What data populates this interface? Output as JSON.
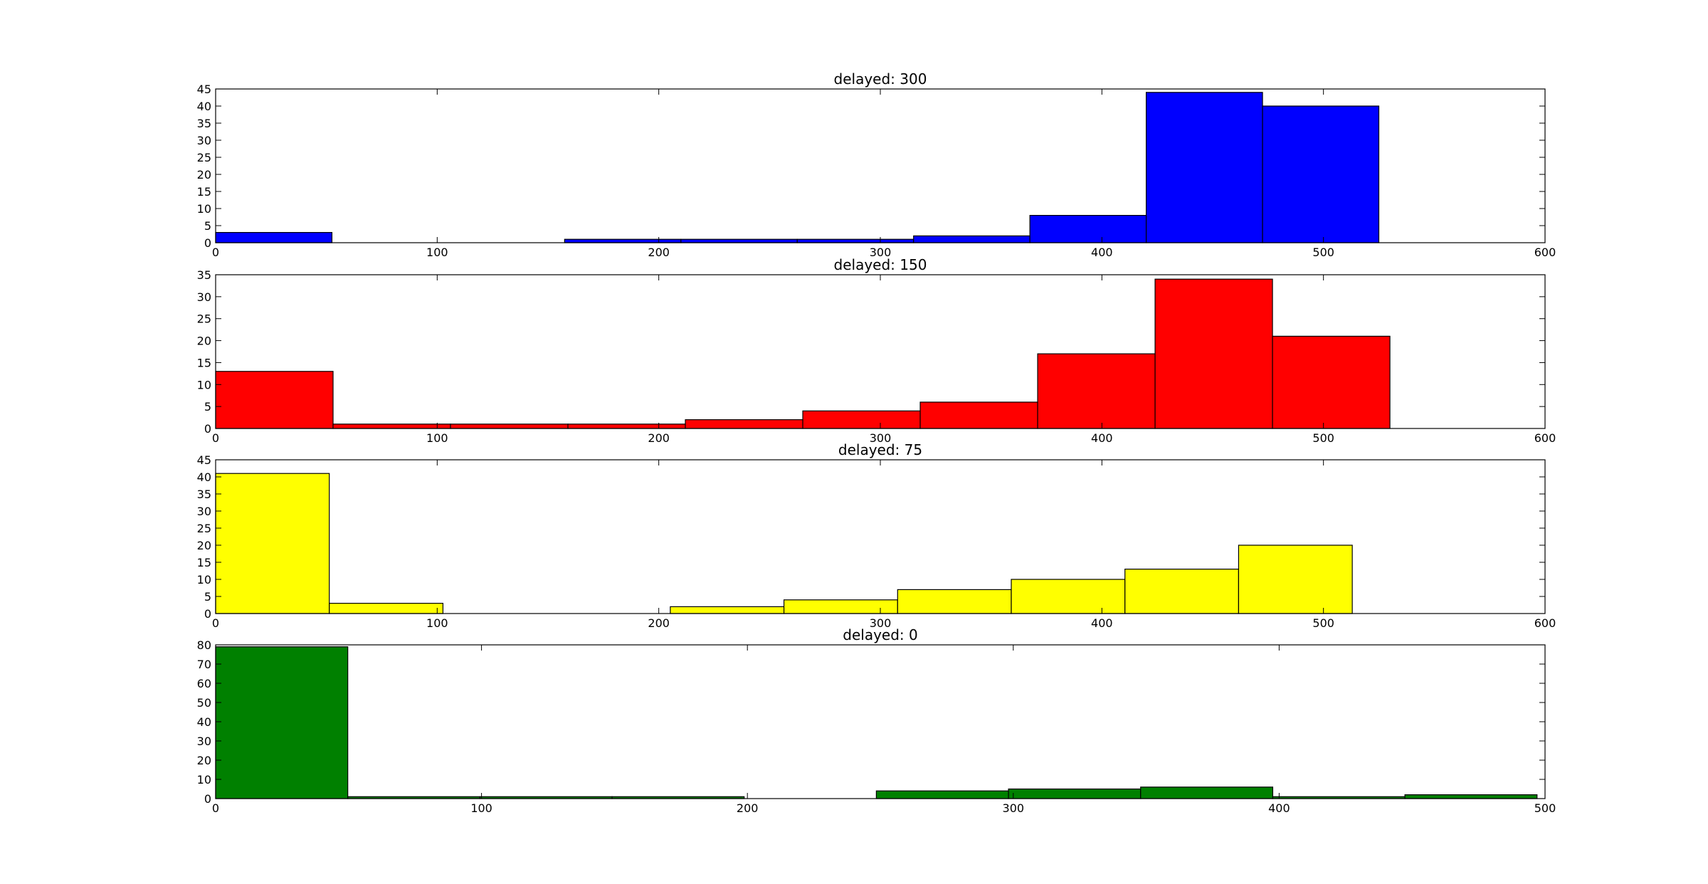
{
  "chart_data": [
    {
      "type": "bar",
      "title": "delayed: 300",
      "color": "#0000ff",
      "xlim": [
        0,
        600
      ],
      "ylim": [
        0,
        45
      ],
      "xticks": [
        "0",
        "100",
        "200",
        "300",
        "400",
        "500",
        "600"
      ],
      "yticks": [
        "0",
        "5",
        "10",
        "15",
        "20",
        "25",
        "30",
        "35",
        "40",
        "45"
      ],
      "bins": [
        {
          "x0": 0,
          "x1": 52.5,
          "count": 3
        },
        {
          "x0": 52.5,
          "x1": 105,
          "count": 0
        },
        {
          "x0": 105,
          "x1": 157.5,
          "count": 0
        },
        {
          "x0": 157.5,
          "x1": 210,
          "count": 1
        },
        {
          "x0": 210,
          "x1": 262.5,
          "count": 1
        },
        {
          "x0": 262.5,
          "x1": 315,
          "count": 1
        },
        {
          "x0": 315,
          "x1": 367.5,
          "count": 2
        },
        {
          "x0": 367.5,
          "x1": 420,
          "count": 8
        },
        {
          "x0": 420,
          "x1": 472.5,
          "count": 44
        },
        {
          "x0": 472.5,
          "x1": 525,
          "count": 40
        }
      ]
    },
    {
      "type": "bar",
      "title": "delayed: 150",
      "color": "#ff0000",
      "xlim": [
        0,
        600
      ],
      "ylim": [
        0,
        35
      ],
      "xticks": [
        "0",
        "100",
        "200",
        "300",
        "400",
        "500",
        "600"
      ],
      "yticks": [
        "0",
        "5",
        "10",
        "15",
        "20",
        "25",
        "30",
        "35"
      ],
      "bins": [
        {
          "x0": 0,
          "x1": 53,
          "count": 13
        },
        {
          "x0": 53,
          "x1": 106,
          "count": 1
        },
        {
          "x0": 106,
          "x1": 159,
          "count": 1
        },
        {
          "x0": 159,
          "x1": 212,
          "count": 1
        },
        {
          "x0": 212,
          "x1": 265,
          "count": 2
        },
        {
          "x0": 265,
          "x1": 318,
          "count": 4
        },
        {
          "x0": 318,
          "x1": 371,
          "count": 6
        },
        {
          "x0": 371,
          "x1": 424,
          "count": 17
        },
        {
          "x0": 424,
          "x1": 477,
          "count": 34
        },
        {
          "x0": 477,
          "x1": 530,
          "count": 21
        }
      ]
    },
    {
      "type": "bar",
      "title": "delayed: 75",
      "color": "#ffff00",
      "xlim": [
        0,
        600
      ],
      "ylim": [
        0,
        45
      ],
      "xticks": [
        "0",
        "100",
        "200",
        "300",
        "400",
        "500",
        "600"
      ],
      "yticks": [
        "0",
        "5",
        "10",
        "15",
        "20",
        "25",
        "30",
        "35",
        "40",
        "45"
      ],
      "bins": [
        {
          "x0": 0,
          "x1": 51.3,
          "count": 41
        },
        {
          "x0": 51.3,
          "x1": 102.6,
          "count": 3
        },
        {
          "x0": 102.6,
          "x1": 153.9,
          "count": 0
        },
        {
          "x0": 153.9,
          "x1": 205.2,
          "count": 0
        },
        {
          "x0": 205.2,
          "x1": 256.5,
          "count": 2
        },
        {
          "x0": 256.5,
          "x1": 307.8,
          "count": 4
        },
        {
          "x0": 307.8,
          "x1": 359.1,
          "count": 7
        },
        {
          "x0": 359.1,
          "x1": 410.4,
          "count": 10
        },
        {
          "x0": 410.4,
          "x1": 461.7,
          "count": 13
        },
        {
          "x0": 461.7,
          "x1": 513,
          "count": 20
        }
      ]
    },
    {
      "type": "bar",
      "title": "delayed: 0",
      "color": "#008000",
      "xlim": [
        0,
        500
      ],
      "ylim": [
        0,
        80
      ],
      "xticks": [
        "0",
        "100",
        "200",
        "300",
        "400",
        "500"
      ],
      "yticks": [
        "0",
        "10",
        "20",
        "30",
        "40",
        "50",
        "60",
        "70",
        "80"
      ],
      "bins": [
        {
          "x0": 0,
          "x1": 49.7,
          "count": 79
        },
        {
          "x0": 49.7,
          "x1": 99.4,
          "count": 1
        },
        {
          "x0": 99.4,
          "x1": 149.1,
          "count": 1
        },
        {
          "x0": 149.1,
          "x1": 198.8,
          "count": 1
        },
        {
          "x0": 198.8,
          "x1": 248.5,
          "count": 0
        },
        {
          "x0": 248.5,
          "x1": 298.2,
          "count": 4
        },
        {
          "x0": 298.2,
          "x1": 347.9,
          "count": 5
        },
        {
          "x0": 347.9,
          "x1": 397.6,
          "count": 6
        },
        {
          "x0": 397.6,
          "x1": 447.3,
          "count": 1
        },
        {
          "x0": 447.3,
          "x1": 497,
          "count": 2
        }
      ]
    }
  ]
}
